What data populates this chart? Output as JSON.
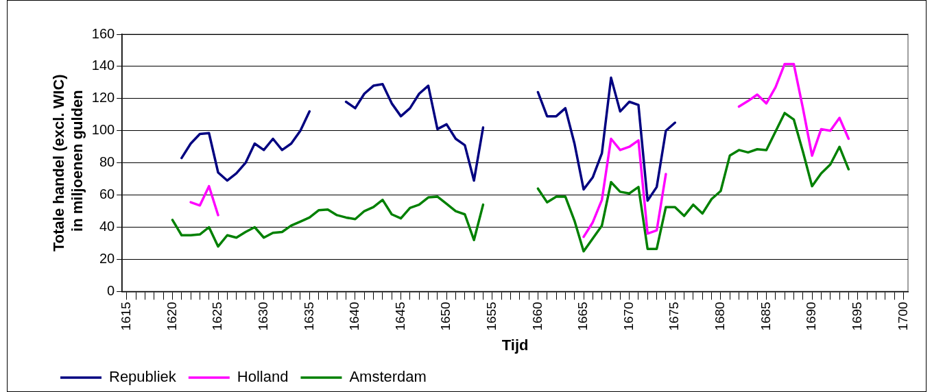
{
  "chart_data": {
    "type": "line",
    "xlabel": "Tijd",
    "ylabel": "Totale handel (excl. WIC)  in miljoenen gulden",
    "x": [
      1620,
      1621,
      1622,
      1623,
      1624,
      1625,
      1626,
      1627,
      1628,
      1629,
      1630,
      1631,
      1632,
      1633,
      1634,
      1635,
      1636,
      1637,
      1638,
      1639,
      1640,
      1641,
      1642,
      1643,
      1644,
      1645,
      1646,
      1647,
      1648,
      1649,
      1650,
      1651,
      1652,
      1653,
      1654,
      1655,
      1656,
      1657,
      1658,
      1659,
      1660,
      1661,
      1662,
      1663,
      1664,
      1665,
      1666,
      1667,
      1668,
      1669,
      1670,
      1671,
      1672,
      1673,
      1674,
      1675,
      1676,
      1677,
      1678,
      1679,
      1680,
      1681,
      1682,
      1683,
      1684,
      1685,
      1686,
      1687,
      1688,
      1689,
      1690,
      1691,
      1692,
      1693,
      1694
    ],
    "series": [
      {
        "name": "Republiek",
        "color": "#000080",
        "values": [
          null,
          83,
          92,
          98,
          98.5,
          74,
          69,
          73.5,
          80,
          92,
          88,
          95,
          88,
          92,
          100,
          112,
          null,
          null,
          null,
          118,
          114,
          123,
          128,
          129,
          117,
          109,
          114,
          123,
          128,
          101,
          104,
          95,
          91,
          69,
          102,
          null,
          null,
          null,
          null,
          null,
          124,
          109,
          109,
          114,
          92,
          63.5,
          71,
          86,
          133,
          112,
          118,
          116,
          56.5,
          65,
          100,
          105,
          null,
          null,
          null,
          null,
          null,
          null,
          null,
          null,
          null,
          null,
          null,
          null,
          null,
          null,
          null,
          null,
          null,
          null,
          null
        ]
      },
      {
        "name": "Holland",
        "color": "#ff00ff",
        "values": [
          null,
          null,
          55.5,
          53.5,
          65.5,
          47.5,
          null,
          null,
          null,
          null,
          null,
          null,
          null,
          null,
          null,
          null,
          null,
          null,
          null,
          null,
          null,
          null,
          null,
          null,
          null,
          null,
          null,
          null,
          null,
          null,
          null,
          null,
          null,
          null,
          null,
          null,
          null,
          null,
          null,
          null,
          null,
          null,
          null,
          null,
          null,
          34,
          43,
          57,
          95,
          88,
          90,
          94,
          36,
          38,
          73,
          null,
          null,
          null,
          null,
          null,
          null,
          null,
          115,
          118.5,
          122.5,
          117,
          127,
          141.5,
          141.5,
          114,
          84.5,
          101,
          100,
          108,
          95
        ]
      },
      {
        "name": "Amsterdam",
        "color": "#008000",
        "values": [
          44.5,
          35,
          35,
          35.5,
          40,
          28,
          35,
          33.5,
          37,
          40,
          33.5,
          36.5,
          37,
          41,
          43.5,
          46,
          50.5,
          51,
          47.5,
          46,
          45,
          50,
          52.5,
          57,
          48,
          45.5,
          52,
          54,
          58.5,
          59,
          54.5,
          50,
          48,
          32,
          54,
          null,
          null,
          null,
          null,
          null,
          64,
          55.5,
          59,
          59,
          44,
          25,
          33,
          41,
          68,
          62,
          61,
          65,
          26.5,
          26.5,
          52.5,
          52.5,
          47,
          54,
          48.5,
          57.5,
          62.5,
          84.5,
          88,
          86.5,
          88.5,
          88,
          99.5,
          111,
          107,
          87,
          65.5,
          73.5,
          79,
          90,
          76
        ]
      }
    ],
    "xlim": [
      1614.5,
      1700.5
    ],
    "xticks": [
      1615,
      {
        "value": 1616,
        "label": null
      },
      {
        "value": 1617,
        "label": null
      },
      {
        "value": 1618,
        "label": null
      },
      {
        "value": 1619,
        "label": null
      },
      1620,
      {
        "value": 1621,
        "label": null
      },
      {
        "value": 1622,
        "label": null
      },
      {
        "value": 1623,
        "label": null
      },
      {
        "value": 1624,
        "label": null
      },
      1625,
      {
        "value": 1626,
        "label": null
      },
      {
        "value": 1627,
        "label": null
      },
      {
        "value": 1628,
        "label": null
      },
      {
        "value": 1629,
        "label": null
      },
      1630,
      {
        "value": 1631,
        "label": null
      },
      {
        "value": 1632,
        "label": null
      },
      {
        "value": 1633,
        "label": null
      },
      {
        "value": 1634,
        "label": null
      },
      1635,
      {
        "value": 1636,
        "label": null
      },
      {
        "value": 1637,
        "label": null
      },
      {
        "value": 1638,
        "label": null
      },
      {
        "value": 1639,
        "label": null
      },
      1640,
      {
        "value": 1641,
        "label": null
      },
      {
        "value": 1642,
        "label": null
      },
      {
        "value": 1643,
        "label": null
      },
      {
        "value": 1644,
        "label": null
      },
      1645,
      {
        "value": 1646,
        "label": null
      },
      {
        "value": 1647,
        "label": null
      },
      {
        "value": 1648,
        "label": null
      },
      {
        "value": 1649,
        "label": null
      },
      1650,
      {
        "value": 1651,
        "label": null
      },
      {
        "value": 1652,
        "label": null
      },
      {
        "value": 1653,
        "label": null
      },
      {
        "value": 1654,
        "label": null
      },
      1655,
      {
        "value": 1656,
        "label": null
      },
      {
        "value": 1657,
        "label": null
      },
      {
        "value": 1658,
        "label": null
      },
      {
        "value": 1659,
        "label": null
      },
      1660,
      {
        "value": 1661,
        "label": null
      },
      {
        "value": 1662,
        "label": null
      },
      {
        "value": 1663,
        "label": null
      },
      {
        "value": 1664,
        "label": null
      },
      1665,
      {
        "value": 1666,
        "label": null
      },
      {
        "value": 1667,
        "label": null
      },
      {
        "value": 1668,
        "label": null
      },
      {
        "value": 1669,
        "label": null
      },
      1670,
      {
        "value": 1671,
        "label": null
      },
      {
        "value": 1672,
        "label": null
      },
      {
        "value": 1673,
        "label": null
      },
      {
        "value": 1674,
        "label": null
      },
      1675,
      {
        "value": 1676,
        "label": null
      },
      {
        "value": 1677,
        "label": null
      },
      {
        "value": 1678,
        "label": null
      },
      {
        "value": 1679,
        "label": null
      },
      1680,
      {
        "value": 1681,
        "label": null
      },
      {
        "value": 1682,
        "label": null
      },
      {
        "value": 1683,
        "label": null
      },
      {
        "value": 1684,
        "label": null
      },
      1685,
      {
        "value": 1686,
        "label": null
      },
      {
        "value": 1687,
        "label": null
      },
      {
        "value": 1688,
        "label": null
      },
      {
        "value": 1689,
        "label": null
      },
      1690,
      {
        "value": 1691,
        "label": null
      },
      {
        "value": 1692,
        "label": null
      },
      {
        "value": 1693,
        "label": null
      },
      {
        "value": 1694,
        "label": null
      },
      1695,
      {
        "value": 1696,
        "label": null
      },
      {
        "value": 1697,
        "label": null
      },
      {
        "value": 1698,
        "label": null
      },
      {
        "value": 1699,
        "label": null
      },
      1700
    ],
    "ylim": [
      0,
      160
    ],
    "yticks": [
      0,
      20,
      40,
      60,
      80,
      100,
      120,
      140,
      160
    ],
    "grid": "y",
    "legend": "bottom left",
    "marker": "none",
    "line_style": "solid"
  }
}
